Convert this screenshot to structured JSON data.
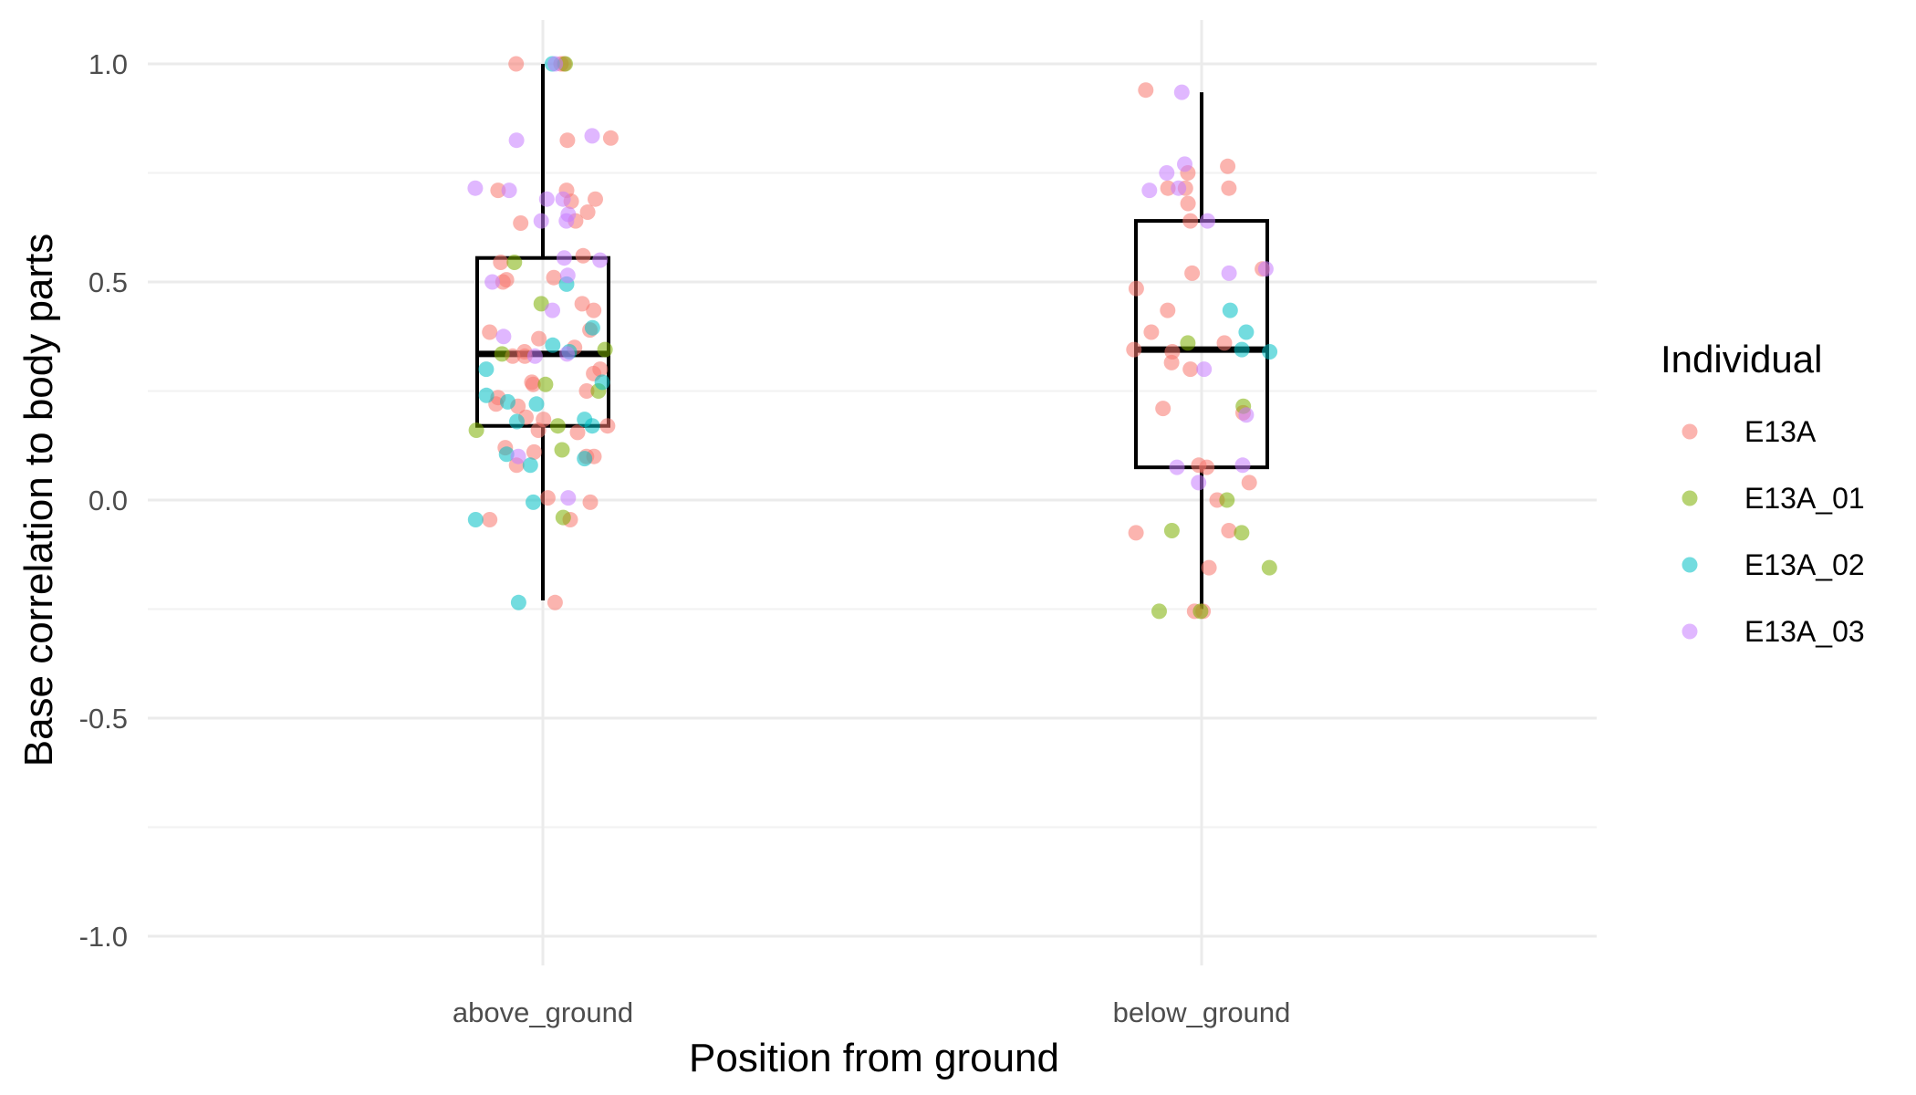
{
  "chart_data": {
    "type": "box",
    "xlabel": "Position from ground",
    "ylabel": "Base correlation to body parts",
    "ylim": [
      -1.1,
      1.1
    ],
    "yticks": [
      1.0,
      0.5,
      0.0,
      -0.5,
      -1.0
    ],
    "ytick_labels": [
      "1.0",
      "0.5",
      "0.0",
      "-0.5",
      "-1.0"
    ],
    "grid": true,
    "categories": [
      "above_ground",
      "below_ground"
    ],
    "boxes": [
      {
        "category": "above_ground",
        "whisker_low": -0.23,
        "q1": 0.17,
        "median": 0.335,
        "q3": 0.555,
        "whisker_high": 1.0
      },
      {
        "category": "below_ground",
        "whisker_low": -0.25,
        "q1": 0.075,
        "median": 0.345,
        "q3": 0.64,
        "whisker_high": 0.935
      }
    ],
    "legend": {
      "title": "Individual",
      "placement": "right",
      "entries": [
        {
          "name": "E13A",
          "color": "#F8766D"
        },
        {
          "name": "E13A_01",
          "color": "#7CAE00"
        },
        {
          "name": "E13A_02",
          "color": "#00BFC4"
        },
        {
          "name": "E13A_03",
          "color": "#C77CFF"
        }
      ]
    },
    "series": [
      {
        "name": "E13A",
        "color": "#F8766D",
        "points": [
          [
            "above_ground",
            1.0
          ],
          [
            "above_ground",
            1.0
          ],
          [
            "above_ground",
            1.0
          ],
          [
            "above_ground",
            0.83
          ],
          [
            "above_ground",
            0.825
          ],
          [
            "above_ground",
            0.71
          ],
          [
            "above_ground",
            0.71
          ],
          [
            "above_ground",
            0.69
          ],
          [
            "above_ground",
            0.685
          ],
          [
            "above_ground",
            0.66
          ],
          [
            "above_ground",
            0.64
          ],
          [
            "above_ground",
            0.635
          ],
          [
            "above_ground",
            0.56
          ],
          [
            "above_ground",
            0.545
          ],
          [
            "above_ground",
            0.51
          ],
          [
            "above_ground",
            0.505
          ],
          [
            "above_ground",
            0.5
          ],
          [
            "above_ground",
            0.45
          ],
          [
            "above_ground",
            0.435
          ],
          [
            "above_ground",
            0.39
          ],
          [
            "above_ground",
            0.385
          ],
          [
            "above_ground",
            0.37
          ],
          [
            "above_ground",
            0.35
          ],
          [
            "above_ground",
            0.34
          ],
          [
            "above_ground",
            0.33
          ],
          [
            "above_ground",
            0.33
          ],
          [
            "above_ground",
            0.3
          ],
          [
            "above_ground",
            0.29
          ],
          [
            "above_ground",
            0.27
          ],
          [
            "above_ground",
            0.265
          ],
          [
            "above_ground",
            0.25
          ],
          [
            "above_ground",
            0.235
          ],
          [
            "above_ground",
            0.22
          ],
          [
            "above_ground",
            0.215
          ],
          [
            "above_ground",
            0.19
          ],
          [
            "above_ground",
            0.185
          ],
          [
            "above_ground",
            0.17
          ],
          [
            "above_ground",
            0.16
          ],
          [
            "above_ground",
            0.155
          ],
          [
            "above_ground",
            0.12
          ],
          [
            "above_ground",
            0.11
          ],
          [
            "above_ground",
            0.1
          ],
          [
            "above_ground",
            0.1
          ],
          [
            "above_ground",
            0.08
          ],
          [
            "above_ground",
            0.005
          ],
          [
            "above_ground",
            -0.005
          ],
          [
            "above_ground",
            -0.045
          ],
          [
            "above_ground",
            -0.045
          ],
          [
            "above_ground",
            -0.235
          ],
          [
            "below_ground",
            0.94
          ],
          [
            "below_ground",
            0.765
          ],
          [
            "below_ground",
            0.75
          ],
          [
            "below_ground",
            0.715
          ],
          [
            "below_ground",
            0.715
          ],
          [
            "below_ground",
            0.715
          ],
          [
            "below_ground",
            0.68
          ],
          [
            "below_ground",
            0.64
          ],
          [
            "below_ground",
            0.53
          ],
          [
            "below_ground",
            0.52
          ],
          [
            "below_ground",
            0.485
          ],
          [
            "below_ground",
            0.435
          ],
          [
            "below_ground",
            0.385
          ],
          [
            "below_ground",
            0.36
          ],
          [
            "below_ground",
            0.345
          ],
          [
            "below_ground",
            0.34
          ],
          [
            "below_ground",
            0.315
          ],
          [
            "below_ground",
            0.3
          ],
          [
            "below_ground",
            0.21
          ],
          [
            "below_ground",
            0.2
          ],
          [
            "below_ground",
            0.08
          ],
          [
            "below_ground",
            0.075
          ],
          [
            "below_ground",
            0.04
          ],
          [
            "below_ground",
            0.0
          ],
          [
            "below_ground",
            -0.07
          ],
          [
            "below_ground",
            -0.075
          ],
          [
            "below_ground",
            -0.155
          ],
          [
            "below_ground",
            -0.255
          ],
          [
            "below_ground",
            -0.255
          ]
        ]
      },
      {
        "name": "E13A_01",
        "color": "#7CAE00",
        "points": [
          [
            "above_ground",
            1.0
          ],
          [
            "above_ground",
            0.545
          ],
          [
            "above_ground",
            0.45
          ],
          [
            "above_ground",
            0.345
          ],
          [
            "above_ground",
            0.335
          ],
          [
            "above_ground",
            0.265
          ],
          [
            "above_ground",
            0.25
          ],
          [
            "above_ground",
            0.17
          ],
          [
            "above_ground",
            0.16
          ],
          [
            "above_ground",
            0.115
          ],
          [
            "above_ground",
            -0.04
          ],
          [
            "below_ground",
            0.36
          ],
          [
            "below_ground",
            0.215
          ],
          [
            "below_ground",
            0.0
          ],
          [
            "below_ground",
            -0.07
          ],
          [
            "below_ground",
            -0.075
          ],
          [
            "below_ground",
            -0.155
          ],
          [
            "below_ground",
            -0.255
          ],
          [
            "below_ground",
            -0.255
          ]
        ]
      },
      {
        "name": "E13A_02",
        "color": "#00BFC4",
        "points": [
          [
            "above_ground",
            1.0
          ],
          [
            "above_ground",
            0.495
          ],
          [
            "above_ground",
            0.395
          ],
          [
            "above_ground",
            0.355
          ],
          [
            "above_ground",
            0.34
          ],
          [
            "above_ground",
            0.3
          ],
          [
            "above_ground",
            0.27
          ],
          [
            "above_ground",
            0.24
          ],
          [
            "above_ground",
            0.225
          ],
          [
            "above_ground",
            0.22
          ],
          [
            "above_ground",
            0.185
          ],
          [
            "above_ground",
            0.18
          ],
          [
            "above_ground",
            0.17
          ],
          [
            "above_ground",
            0.105
          ],
          [
            "above_ground",
            0.095
          ],
          [
            "above_ground",
            0.08
          ],
          [
            "above_ground",
            -0.005
          ],
          [
            "above_ground",
            -0.045
          ],
          [
            "above_ground",
            -0.235
          ],
          [
            "below_ground",
            0.435
          ],
          [
            "below_ground",
            0.385
          ],
          [
            "below_ground",
            0.345
          ],
          [
            "below_ground",
            0.34
          ]
        ]
      },
      {
        "name": "E13A_03",
        "color": "#C77CFF",
        "points": [
          [
            "above_ground",
            1.0
          ],
          [
            "above_ground",
            0.835
          ],
          [
            "above_ground",
            0.825
          ],
          [
            "above_ground",
            0.715
          ],
          [
            "above_ground",
            0.71
          ],
          [
            "above_ground",
            0.69
          ],
          [
            "above_ground",
            0.69
          ],
          [
            "above_ground",
            0.655
          ],
          [
            "above_ground",
            0.64
          ],
          [
            "above_ground",
            0.64
          ],
          [
            "above_ground",
            0.555
          ],
          [
            "above_ground",
            0.55
          ],
          [
            "above_ground",
            0.515
          ],
          [
            "above_ground",
            0.5
          ],
          [
            "above_ground",
            0.435
          ],
          [
            "above_ground",
            0.375
          ],
          [
            "above_ground",
            0.335
          ],
          [
            "above_ground",
            0.33
          ],
          [
            "above_ground",
            0.1
          ],
          [
            "above_ground",
            0.005
          ],
          [
            "below_ground",
            0.935
          ],
          [
            "below_ground",
            0.77
          ],
          [
            "below_ground",
            0.75
          ],
          [
            "below_ground",
            0.715
          ],
          [
            "below_ground",
            0.71
          ],
          [
            "below_ground",
            0.64
          ],
          [
            "below_ground",
            0.53
          ],
          [
            "below_ground",
            0.52
          ],
          [
            "below_ground",
            0.3
          ],
          [
            "below_ground",
            0.195
          ],
          [
            "below_ground",
            0.08
          ],
          [
            "below_ground",
            0.075
          ],
          [
            "below_ground",
            0.04
          ]
        ]
      }
    ]
  }
}
